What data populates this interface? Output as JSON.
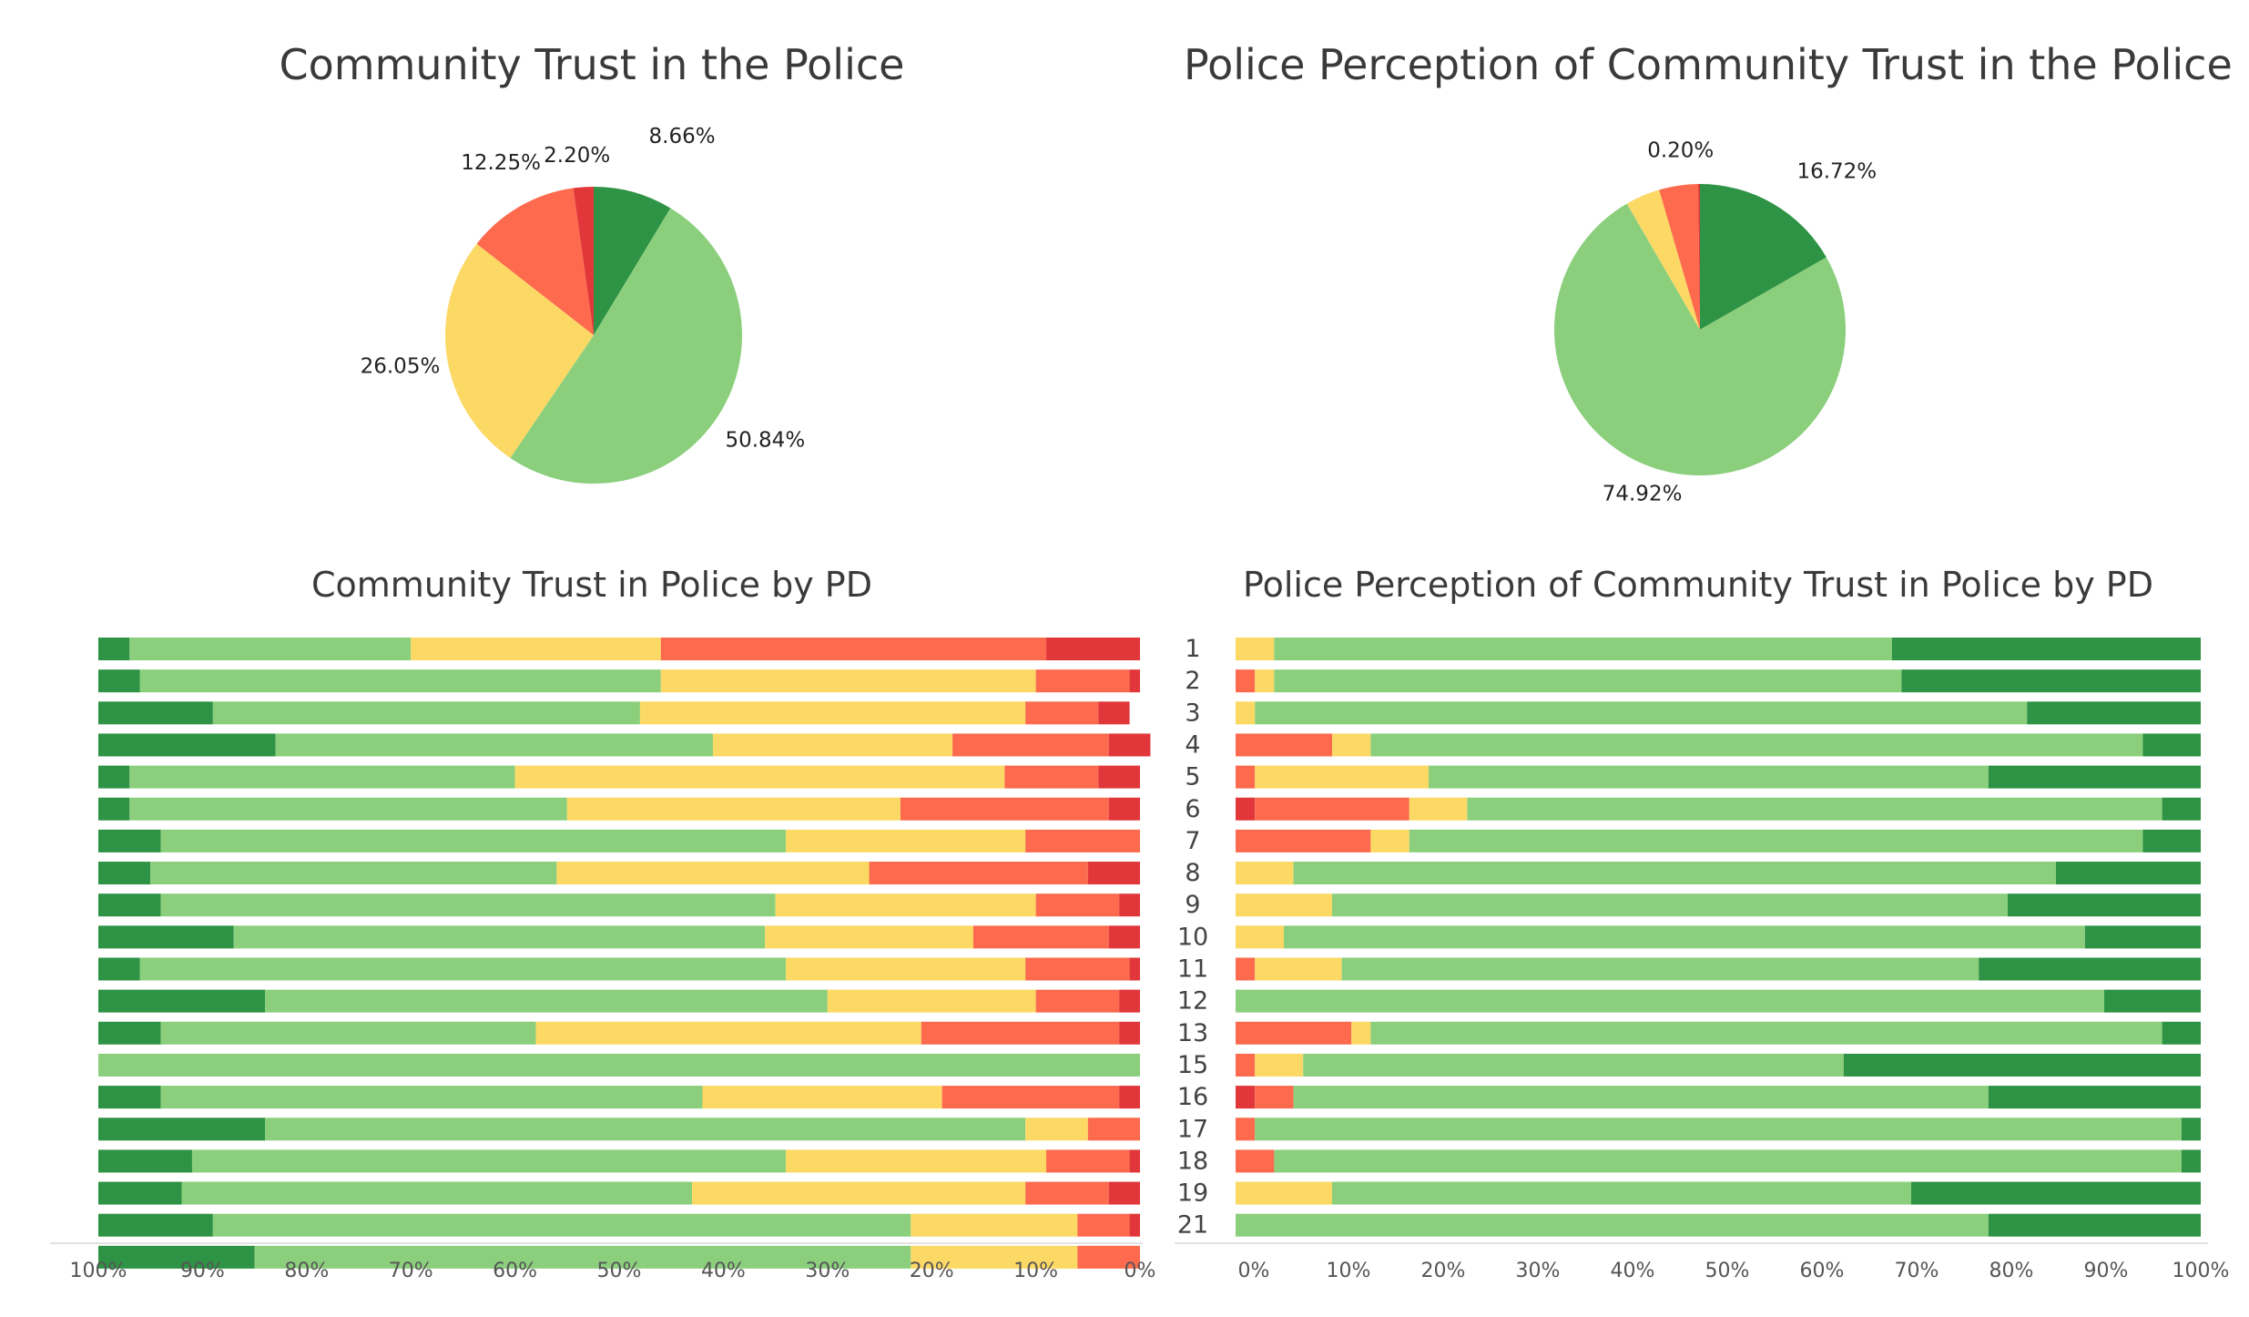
{
  "colors": {
    "dark_green": "#2e9344",
    "light_green": "#8bcf7d",
    "yellow": "#fcd965",
    "orange_red": "#fd6a4e",
    "red": "#e2373a"
  },
  "chart_data": [
    {
      "type": "pie",
      "title": "Community Trust in the Police",
      "slices": [
        {
          "value": 8.66,
          "label": "8.66%",
          "color": "#2e9344"
        },
        {
          "value": 50.84,
          "label": "50.84%",
          "color": "#8bcf7d"
        },
        {
          "value": 26.05,
          "label": "26.05%",
          "color": "#fcd965"
        },
        {
          "value": 12.25,
          "label": "12.25%",
          "color": "#fd6a4e"
        },
        {
          "value": 2.2,
          "label": "2.20%",
          "color": "#e2373a"
        }
      ]
    },
    {
      "type": "pie",
      "title": "Police Perception of Community Trust in the Police",
      "slices": [
        {
          "value": 16.72,
          "label": "16.72%",
          "color": "#2e9344"
        },
        {
          "value": 74.92,
          "label": "74.92%",
          "color": "#8bcf7d"
        },
        {
          "value": 3.84,
          "label": "",
          "color": "#fcd965"
        },
        {
          "value": 4.32,
          "label": "",
          "color": "#fd6a4e"
        },
        {
          "value": 0.2,
          "label": "0.20%",
          "color": "#e2373a"
        }
      ]
    },
    {
      "type": "bar",
      "stacked": true,
      "orientation": "horizontal",
      "title": "Community Trust in Police by PD",
      "x_reversed": true,
      "xlim": [
        0,
        100
      ],
      "x_ticks": [
        "100%",
        "90%",
        "80%",
        "70%",
        "60%",
        "50%",
        "40%",
        "30%",
        "20%",
        "10%",
        "0%"
      ],
      "segment_order": [
        "dark_green",
        "light_green",
        "yellow",
        "orange_red",
        "red"
      ],
      "rows": [
        [
          3,
          27,
          24,
          37,
          9
        ],
        [
          4,
          50,
          36,
          9,
          1
        ],
        [
          11,
          41,
          37,
          7,
          3
        ],
        [
          17,
          42,
          23,
          15,
          4
        ],
        [
          3,
          37,
          47,
          9,
          4
        ],
        [
          3,
          42,
          32,
          20,
          3
        ],
        [
          6,
          60,
          23,
          11,
          0
        ],
        [
          5,
          39,
          30,
          21,
          5
        ],
        [
          6,
          59,
          25,
          8,
          2
        ],
        [
          13,
          51,
          20,
          13,
          3
        ],
        [
          4,
          62,
          23,
          10,
          1
        ],
        [
          16,
          54,
          20,
          8,
          2
        ],
        [
          6,
          36,
          37,
          19,
          2
        ],
        [
          0,
          100,
          0,
          0,
          0
        ],
        [
          6,
          52,
          23,
          17,
          2
        ],
        [
          16,
          73,
          6,
          5,
          0
        ],
        [
          9,
          57,
          25,
          8,
          1
        ],
        [
          8,
          49,
          32,
          8,
          3
        ],
        [
          11,
          67,
          16,
          5,
          1
        ],
        [
          15,
          63,
          16,
          6,
          0
        ]
      ]
    },
    {
      "type": "bar",
      "stacked": true,
      "orientation": "horizontal",
      "title": "Police Perception of Community Trust in Police by PD",
      "xlim": [
        0,
        100
      ],
      "x_ticks": [
        "0%",
        "10%",
        "20%",
        "30%",
        "40%",
        "50%",
        "60%",
        "70%",
        "80%",
        "90%",
        "100%"
      ],
      "categories": [
        "1",
        "2",
        "3",
        "4",
        "5",
        "6",
        "7",
        "8",
        "9",
        "10",
        "11",
        "12",
        "13",
        "15",
        "16",
        "17",
        "18",
        "19",
        "21"
      ],
      "segment_order": [
        "red",
        "orange_red",
        "yellow",
        "light_green",
        "dark_green"
      ],
      "rows": [
        [
          0,
          0,
          4,
          64,
          32
        ],
        [
          0,
          2,
          2,
          65,
          31
        ],
        [
          0,
          0,
          2,
          80,
          18
        ],
        [
          0,
          10,
          4,
          80,
          6
        ],
        [
          0,
          2,
          18,
          58,
          22
        ],
        [
          2,
          16,
          6,
          72,
          4
        ],
        [
          0,
          14,
          4,
          76,
          6
        ],
        [
          0,
          0,
          6,
          79,
          15
        ],
        [
          0,
          0,
          10,
          70,
          20
        ],
        [
          0,
          0,
          5,
          83,
          12
        ],
        [
          0,
          2,
          9,
          66,
          23
        ],
        [
          0,
          0,
          0,
          90,
          10
        ],
        [
          0,
          12,
          2,
          82,
          4
        ],
        [
          0,
          2,
          5,
          56,
          37
        ],
        [
          2,
          4,
          0,
          72,
          22
        ],
        [
          0,
          2,
          0,
          96,
          2
        ],
        [
          0,
          4,
          0,
          94,
          2
        ],
        [
          0,
          0,
          10,
          60,
          30
        ],
        [
          0,
          0,
          0,
          78,
          22
        ]
      ]
    }
  ]
}
